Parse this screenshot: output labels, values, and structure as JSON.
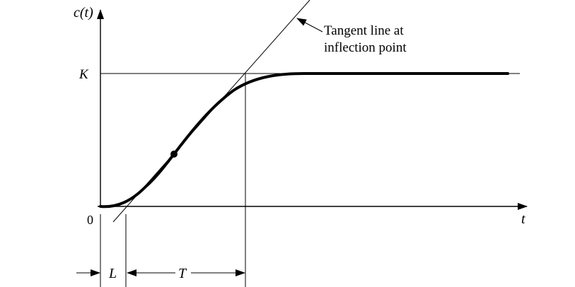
{
  "axes": {
    "y_label": "c(t)",
    "x_label": "t",
    "origin_label": "0"
  },
  "levels": {
    "steady_state_label": "K"
  },
  "annotation": {
    "line1": "Tangent line at",
    "line2": "inflection point"
  },
  "intervals": {
    "delay_label": "L",
    "time_constant_label": "T"
  }
}
